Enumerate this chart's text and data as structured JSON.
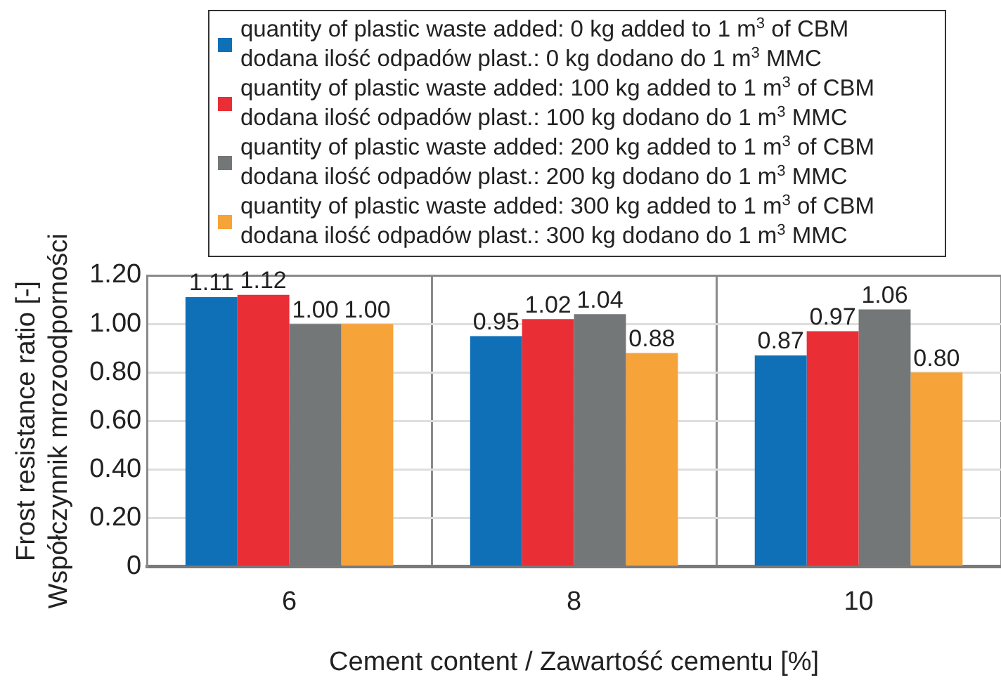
{
  "chart_data": {
    "type": "bar",
    "xlabel": "Cement content / Zawartość cementu [%]",
    "ylabel": "Frost resistance ratio [-]\nWspółczynnik mrozoodporności",
    "categories": [
      "6",
      "8",
      "10"
    ],
    "series": [
      {
        "name": "quantity of plastic waste added: 0 kg added to 1 m$^{3}$ of CBM\ndodana ilość odpadów plast.: 0 kg dodano do 1 m$^{3}$ MMC",
        "color": "#0f70b7",
        "values": [
          1.11,
          0.95,
          0.87
        ],
        "value_labels": [
          "1.11",
          "0.95",
          "0.87"
        ]
      },
      {
        "name": "quantity of plastic waste added: 100 kg added to 1 m$^{3}$ of CBM\ndodana ilość odpadów plast.: 100 kg dodano do 1 m$^{3}$ MMC",
        "color": "#ea2e36",
        "values": [
          1.12,
          1.02,
          0.97
        ],
        "value_labels": [
          "1.12",
          "1.02",
          "0.97"
        ]
      },
      {
        "name": "quantity of plastic waste added: 200 kg added to 1 m$^{3}$ of CBM\ndodana ilość odpadów plast.: 200 kg dodano do 1 m$^{3}$ MMC",
        "color": "#737778",
        "values": [
          1.0,
          1.04,
          1.06
        ],
        "value_labels": [
          "1.00",
          "1.04",
          "1.06"
        ]
      },
      {
        "name": "quantity of plastic waste added: 300 kg added to 1 m$^{3}$ of CBM\ndodana ilość odpadów plast.: 300 kg dodano do 1 m$^{3}$ MMC",
        "color": "#f6a33a",
        "values": [
          1.0,
          0.88,
          0.8
        ],
        "value_labels": [
          "1.00",
          "0.88",
          "0.80"
        ]
      }
    ],
    "ylim": [
      0,
      1.2
    ],
    "yticks": [
      0,
      {
        "value": 0.2,
        "label": "0.20"
      },
      {
        "value": 0.4,
        "label": "0.40"
      },
      {
        "value": 0.6,
        "label": "0.60"
      },
      {
        "value": 0.8,
        "label": "0.80"
      },
      {
        "value": 1.0,
        "label": "1.00"
      },
      {
        "value": 1.2,
        "label": "1.20"
      }
    ],
    "grid": true,
    "legend": "top"
  }
}
